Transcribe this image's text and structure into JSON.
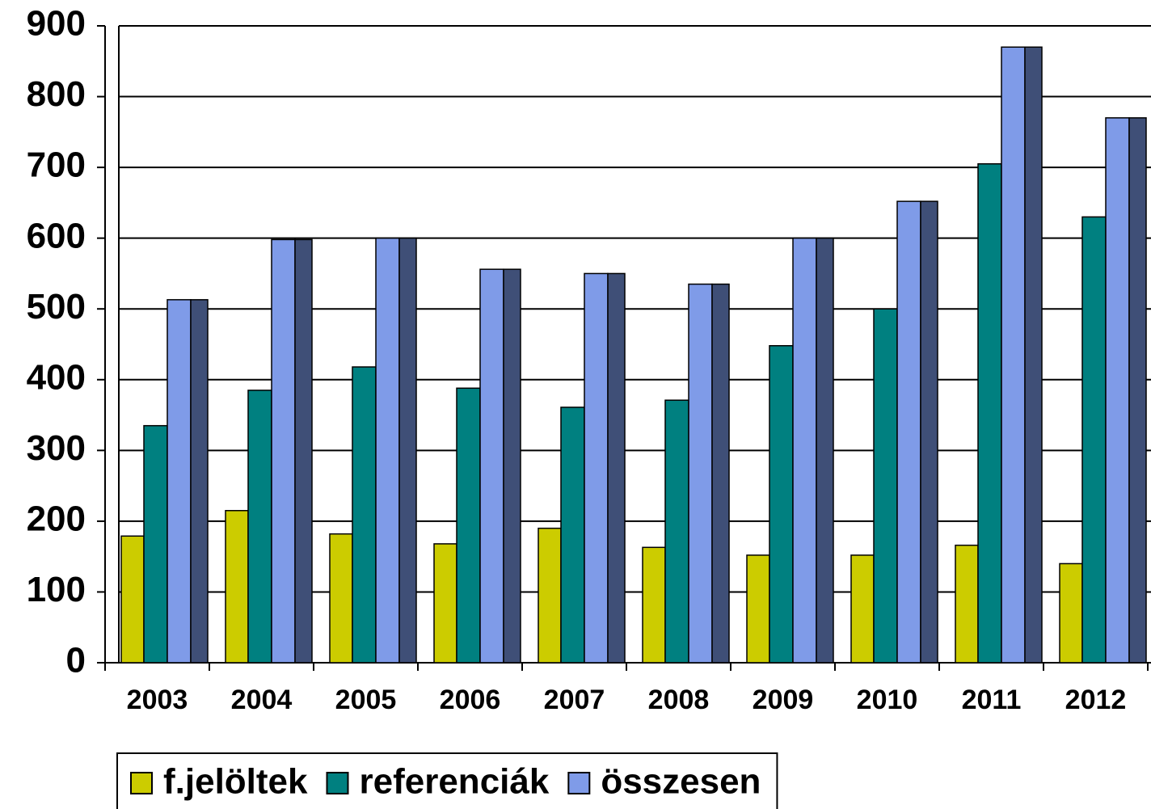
{
  "chart_data": {
    "type": "bar",
    "categories": [
      "2003",
      "2004",
      "2005",
      "2006",
      "2007",
      "2008",
      "2009",
      "2010",
      "2011",
      "2012"
    ],
    "series": [
      {
        "name": "f.jelöltek",
        "color": "#cccc00",
        "values": [
          179,
          215,
          182,
          168,
          190,
          163,
          152,
          152,
          166,
          140
        ]
      },
      {
        "name": "referenciák",
        "color": "#008080",
        "values": [
          335,
          385,
          418,
          388,
          361,
          371,
          448,
          500,
          705,
          630
        ]
      },
      {
        "name": "összesen",
        "color": "#7f9be8",
        "values": [
          513,
          598,
          600,
          556,
          550,
          535,
          600,
          652,
          870,
          770
        ]
      }
    ],
    "ylim": [
      0,
      900
    ],
    "yticks": [
      0,
      100,
      200,
      300,
      400,
      500,
      600,
      700,
      800,
      900
    ],
    "grid": true,
    "legend": "bottom"
  }
}
